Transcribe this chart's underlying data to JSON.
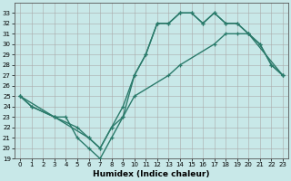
{
  "xlabel": "Humidex (Indice chaleur)",
  "bg_color": "#c8e8e8",
  "grid_color": "#aaaaaa",
  "line_color": "#2a7a6a",
  "xlim": [
    -0.5,
    23.5
  ],
  "ylim": [
    19,
    34
  ],
  "yticks": [
    19,
    20,
    21,
    22,
    23,
    24,
    25,
    26,
    27,
    28,
    29,
    30,
    31,
    32,
    33
  ],
  "xticks": [
    0,
    1,
    2,
    3,
    4,
    5,
    6,
    7,
    8,
    9,
    10,
    11,
    12,
    13,
    14,
    15,
    16,
    17,
    18,
    19,
    20,
    21,
    22,
    23
  ],
  "line_a_x": [
    0,
    1,
    3,
    4,
    5,
    6,
    7,
    8,
    9,
    10,
    11,
    12,
    13,
    14,
    15,
    16,
    17,
    18,
    19,
    20,
    21,
    22,
    23
  ],
  "line_a_y": [
    25,
    24,
    23,
    23,
    21,
    20,
    19,
    21,
    23,
    27,
    29,
    32,
    32,
    33,
    33,
    32,
    33,
    32,
    32,
    31,
    30,
    28,
    27
  ],
  "line_b_x": [
    0,
    1,
    3,
    5,
    6,
    7,
    8,
    9,
    10,
    11,
    12,
    13,
    14,
    15,
    16,
    17,
    18,
    19,
    20,
    21,
    22,
    23
  ],
  "line_b_y": [
    25,
    24,
    23,
    22,
    21,
    20,
    22,
    24,
    27,
    29,
    32,
    32,
    33,
    33,
    32,
    33,
    32,
    32,
    31,
    30,
    28,
    27
  ],
  "line_c_x": [
    0,
    3,
    6,
    7,
    8,
    9,
    10,
    13,
    14,
    17,
    18,
    19,
    20,
    23
  ],
  "line_c_y": [
    25,
    23,
    21,
    20,
    22,
    23,
    25,
    27,
    28,
    30,
    31,
    31,
    31,
    27
  ],
  "linewidth": 1.0,
  "markersize": 3.0,
  "tick_fontsize": 5.0,
  "xlabel_fontsize": 6.5
}
